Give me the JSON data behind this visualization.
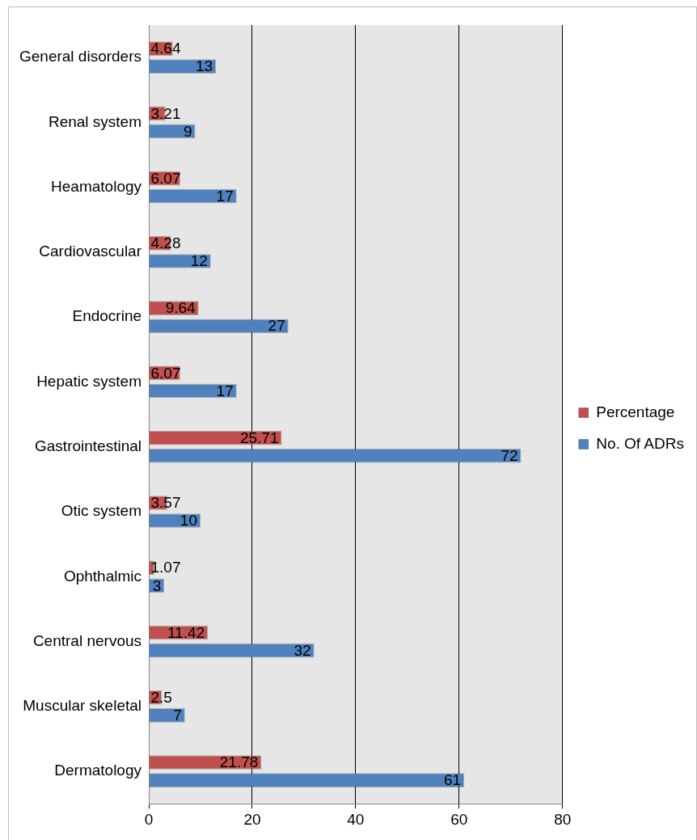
{
  "chart_data": {
    "type": "bar",
    "orientation": "horizontal",
    "categories": [
      "General disorders",
      "Renal system",
      "Heamatology",
      "Cardiovascular",
      "Endocrine",
      "Hepatic system",
      "Gastrointestinal",
      "Otic system",
      "Ophthalmic",
      "Central nervous",
      "Muscular skeletal",
      "Dermatology"
    ],
    "series": [
      {
        "name": "Percentage",
        "color": "#c0504d",
        "values": [
          4.64,
          3.21,
          6.07,
          4.28,
          9.64,
          6.07,
          25.71,
          3.57,
          1.07,
          11.42,
          2.5,
          21.78
        ]
      },
      {
        "name": "No. Of ADRs",
        "color": "#4f81bd",
        "values": [
          13,
          9,
          17,
          12,
          27,
          17,
          72,
          10,
          3,
          32,
          7,
          61
        ]
      }
    ],
    "xlim": [
      0,
      80
    ],
    "xticks": [
      0,
      20,
      40,
      60,
      80
    ],
    "grid": "x",
    "legend": "right",
    "data_labels": true
  }
}
